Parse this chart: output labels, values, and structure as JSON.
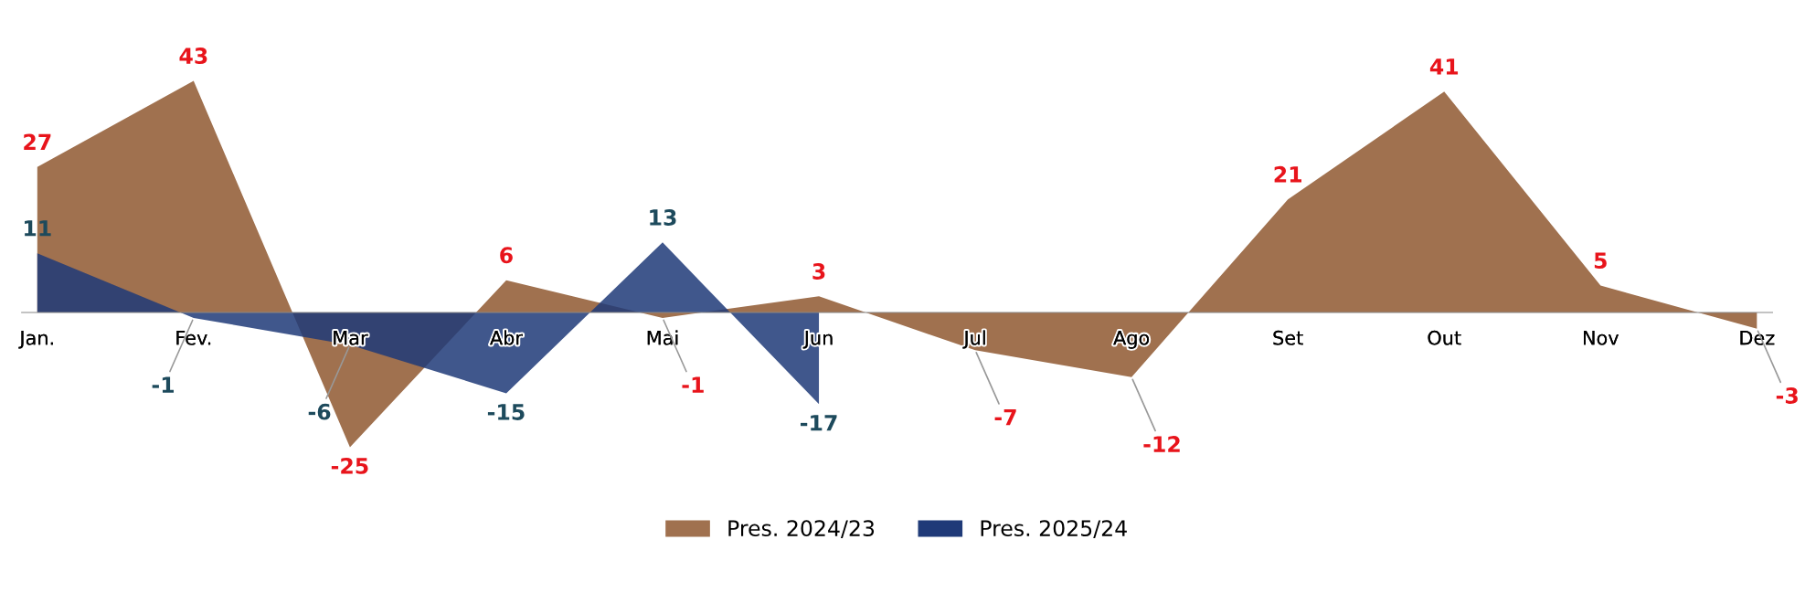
{
  "chart_data": {
    "type": "area",
    "categories": [
      "Jan.",
      "Fev.",
      "Mar",
      "Abr",
      "Mai",
      "Jun",
      "Jul",
      "Ago",
      "Set",
      "Out",
      "Nov",
      "Dez"
    ],
    "series": [
      {
        "name": "Pres. 2024/23",
        "color": "#a0714f",
        "values": [
          27,
          43,
          -25,
          6,
          -1,
          3,
          -7,
          -12,
          21,
          41,
          5,
          -3
        ]
      },
      {
        "name": "Pres. 2025/24",
        "color": "#1f3a78",
        "values": [
          11,
          -1,
          -6,
          -15,
          13,
          -17,
          null,
          null,
          null,
          null,
          null,
          null
        ]
      }
    ],
    "data_labels": true,
    "legend": "bottom",
    "grid": false
  }
}
